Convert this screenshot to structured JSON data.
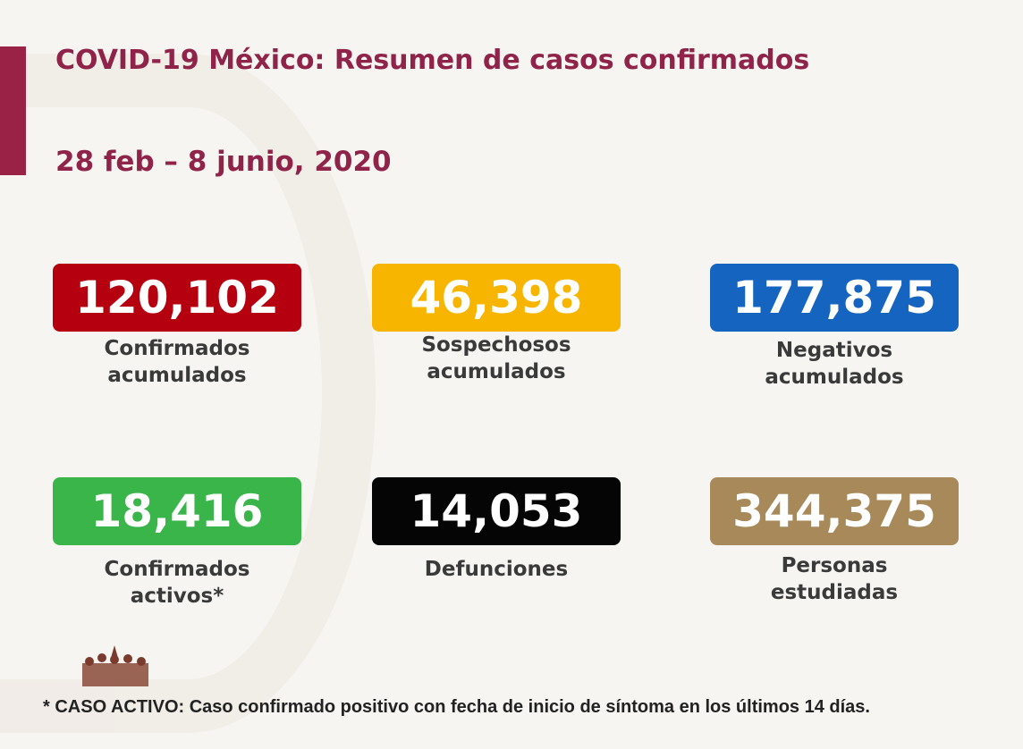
{
  "title": "COVID-19 México: Resumen de casos confirmados",
  "date_range": "28 feb – 8 junio, 2020",
  "stats": [
    {
      "value": "120,102",
      "label1": "Confirmados",
      "label2": "acumulados",
      "color": "#b5000f"
    },
    {
      "value": "46,398",
      "label1": "Sospechosos",
      "label2": "acumulados",
      "color": "#f7b500"
    },
    {
      "value": "177,875",
      "label1": "Negativos",
      "label2": "acumulados",
      "color": "#1565c0"
    },
    {
      "value": "18,416",
      "label1": "Confirmados",
      "label2": "activos*",
      "color": "#3ab54a"
    },
    {
      "value": "14,053",
      "label1": "Defunciones",
      "label2": "",
      "color": "#050505"
    },
    {
      "value": "344,375",
      "label1": "Personas",
      "label2": "estudiadas",
      "color": "#a88959"
    }
  ],
  "footnote": "* CASO ACTIVO: Caso confirmado positivo con fecha de inicio de síntoma en los últimos 14 días.",
  "logo_icon": "heroes-logo-icon"
}
